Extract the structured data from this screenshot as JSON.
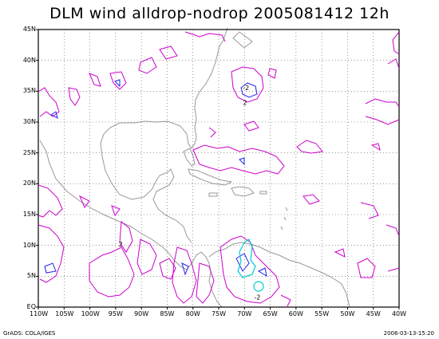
{
  "title": "DLM wind alldrop-nodrop 2005081412 12h",
  "footer_left": "GrADS: COLA/IGES",
  "footer_right": "2006-03-13-15:20",
  "lat_labels": [
    "45N",
    "40N",
    "35N",
    "30N",
    "25N",
    "20N",
    "15N",
    "10N",
    "5N",
    "EQ"
  ],
  "lon_labels": [
    "110W",
    "105W",
    "100W",
    "95W",
    "90W",
    "85W",
    "80W",
    "75W",
    "70W",
    "65W",
    "60W",
    "55W",
    "50W",
    "45W",
    "40W"
  ],
  "contour_labels": [
    {
      "text": "-2",
      "lon": -69.7,
      "lat": 35.2
    },
    {
      "text": "2",
      "lon": -69.9,
      "lat": 32.8
    },
    {
      "text": "2",
      "lon": -94.0,
      "lat": 9.8
    },
    {
      "text": "-2",
      "lon": -67.5,
      "lat": 1.2
    }
  ],
  "colors": {
    "positive": "#cc00cc",
    "negative": "#2222ee",
    "strong": "#00cccc",
    "coast": "#999999",
    "grid": "#555555"
  }
}
